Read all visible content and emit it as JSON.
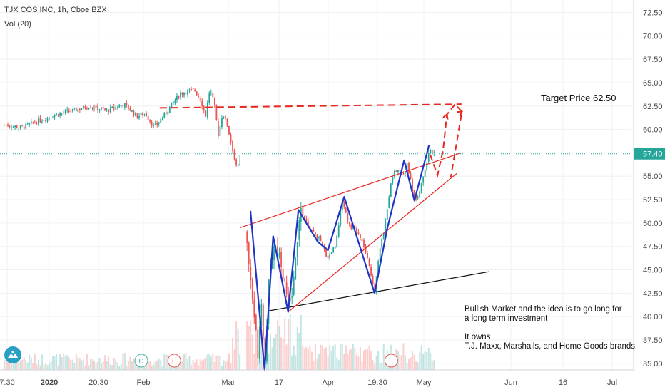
{
  "header": {
    "symbol_line": "TJX COS INC, 1h, Cboe BZX",
    "volume_line": "Vol (20)"
  },
  "colors": {
    "price_axis_bg": "#26a69a",
    "up_candle": "#26a69a",
    "down_candle": "#ef5350",
    "zigzag": "#1f35c8",
    "channel": "#e8281e",
    "support": "#111111",
    "dotted_price": "#26a69a",
    "target": "#e8281e"
  },
  "chart_data": {
    "type": "candlestick",
    "symbol": "TJX COS INC",
    "interval": "1h",
    "exchange": "Cboe BZX",
    "y_axis": {
      "ticks": [
        35.0,
        37.5,
        40.0,
        42.5,
        45.0,
        47.5,
        50.0,
        52.5,
        55.0,
        57.5,
        60.0,
        62.5,
        65.0,
        67.5,
        70.0,
        72.5
      ],
      "tick_labels": [
        "35.00",
        "37.50",
        "40.00",
        "42.50",
        "45.00",
        "47.50",
        "50.00",
        "52.50",
        "55.00",
        "57.50",
        "60.00",
        "62.50",
        "65.00",
        "67.50",
        "70.00",
        "72.50"
      ],
      "ylim": [
        34.3,
        73.3
      ],
      "current_price_label": "57.40",
      "current_price": 57.4
    },
    "x_axis": {
      "tick_labels": [
        "7:30",
        "2020",
        "20:30",
        "Feb",
        "Mar",
        "17",
        "Apr",
        "19:30",
        "May",
        "Jun",
        "16",
        "Jul"
      ],
      "bold_labels": [
        "2020"
      ]
    },
    "price_path": [
      {
        "t": 0,
        "p": 60.5
      },
      {
        "t": 4,
        "p": 60.2
      },
      {
        "t": 8,
        "p": 60.9
      },
      {
        "t": 12,
        "p": 61.6
      },
      {
        "t": 16,
        "p": 62.0
      },
      {
        "t": 20,
        "p": 62.5
      },
      {
        "t": 24,
        "p": 62.0
      },
      {
        "t": 28,
        "p": 62.7
      },
      {
        "t": 31,
        "p": 61.4
      },
      {
        "t": 33,
        "p": 61.7
      },
      {
        "t": 35,
        "p": 60.2
      },
      {
        "t": 37,
        "p": 61.3
      },
      {
        "t": 39,
        "p": 62.6
      },
      {
        "t": 41,
        "p": 63.8
      },
      {
        "t": 43,
        "p": 64.1
      },
      {
        "t": 44.5,
        "p": 64.2
      },
      {
        "t": 46,
        "p": 63.0
      },
      {
        "t": 47,
        "p": 61.4
      },
      {
        "t": 48,
        "p": 64.3
      },
      {
        "t": 49,
        "p": 62.8
      },
      {
        "t": 50,
        "p": 59.4
      },
      {
        "t": 51,
        "p": 61.8
      },
      {
        "t": 52,
        "p": 60.6
      },
      {
        "t": 53,
        "p": 58.6
      },
      {
        "t": 54,
        "p": 56.5
      },
      {
        "t": 55,
        "p": 55.8
      },
      {
        "t": 55.8,
        "p": 51.2
      },
      {
        "t": 56.5,
        "p": 48.4
      },
      {
        "t": 57.5,
        "p": 44.0
      },
      {
        "t": 58.5,
        "p": 39.5
      },
      {
        "t": 59.3,
        "p": 35.9
      },
      {
        "t": 60,
        "p": 42.6
      },
      {
        "t": 60.8,
        "p": 34.8
      },
      {
        "t": 61.8,
        "p": 43.8
      },
      {
        "t": 63,
        "p": 47.8
      },
      {
        "t": 64.5,
        "p": 46.4
      },
      {
        "t": 66.5,
        "p": 40.6
      },
      {
        "t": 68,
        "p": 45.4
      },
      {
        "t": 69,
        "p": 51.4
      },
      {
        "t": 71,
        "p": 49.6
      },
      {
        "t": 73.5,
        "p": 48.3
      },
      {
        "t": 75.5,
        "p": 46.3
      },
      {
        "t": 77.3,
        "p": 47.6
      },
      {
        "t": 79,
        "p": 52.5
      },
      {
        "t": 80.5,
        "p": 49.9
      },
      {
        "t": 82,
        "p": 49.3
      },
      {
        "t": 84,
        "p": 47.6
      },
      {
        "t": 85.5,
        "p": 44.8
      },
      {
        "t": 86.5,
        "p": 42.8
      },
      {
        "t": 87.5,
        "p": 46.6
      },
      {
        "t": 89,
        "p": 49.9
      },
      {
        "t": 90.5,
        "p": 55.1
      },
      {
        "t": 92,
        "p": 55.7
      },
      {
        "t": 93.5,
        "p": 54.9
      },
      {
        "t": 94,
        "p": 56.7
      },
      {
        "t": 95.5,
        "p": 53.2
      },
      {
        "t": 96.5,
        "p": 52.4
      },
      {
        "t": 98,
        "p": 55.1
      },
      {
        "t": 99.3,
        "p": 58.0
      },
      {
        "t": 100.5,
        "p": 57.3
      }
    ],
    "annotations": {
      "zigzag_points": [
        {
          "t": 57.5,
          "p": 51.3
        },
        {
          "t": 60.8,
          "p": 34.3
        },
        {
          "t": 62.8,
          "p": 48.6
        },
        {
          "t": 66.3,
          "p": 40.5
        },
        {
          "t": 68.7,
          "p": 51.4
        },
        {
          "t": 73.2,
          "p": 48.0
        },
        {
          "t": 75.6,
          "p": 47.1
        },
        {
          "t": 79.4,
          "p": 52.8
        },
        {
          "t": 86.5,
          "p": 42.5
        },
        {
          "t": 89.5,
          "p": 49.5
        },
        {
          "t": 93.4,
          "p": 56.7
        },
        {
          "t": 95.8,
          "p": 52.4
        },
        {
          "t": 99.2,
          "p": 58.3
        }
      ],
      "channel_upper": [
        {
          "t": 55.1,
          "p": 49.5
        },
        {
          "t": 106.7,
          "p": 57.5
        }
      ],
      "channel_lower": [
        {
          "t": 66.3,
          "p": 40.5
        },
        {
          "t": 105.7,
          "p": 55.3
        }
      ],
      "support_line": [
        {
          "t": 61.6,
          "p": 40.6
        },
        {
          "t": 113.2,
          "p": 44.8
        }
      ],
      "target_line": [
        {
          "t": 36.3,
          "p": 62.3
        },
        {
          "t": 106.8,
          "p": 62.7
        }
      ],
      "projection_path": [
        {
          "t": 99.5,
          "p": 57.3
        },
        {
          "t": 101.2,
          "p": 55.1
        },
        {
          "t": 102.5,
          "p": 57.8
        },
        {
          "t": 103.4,
          "p": 61.6
        },
        {
          "t": 105.3,
          "p": 62.7
        },
        {
          "t": 106.9,
          "p": 61.9
        },
        {
          "t": 104.3,
          "p": 54.9
        }
      ],
      "target_label": "Target Price 62.50",
      "target_price": 62.5,
      "note_lines": [
        "Bullish Market and the idea is to go long for",
        "a long term investment",
        "",
        "It owns",
        "T.J. Maxx, Marshalls, and Home Goods brands"
      ],
      "event_markers": [
        {
          "letter": "D",
          "t": 32,
          "kind": "dividend"
        },
        {
          "letter": "E",
          "t": 39.7,
          "kind": "earnings"
        },
        {
          "letter": "E",
          "t": 90.4,
          "kind": "earnings"
        }
      ]
    }
  }
}
